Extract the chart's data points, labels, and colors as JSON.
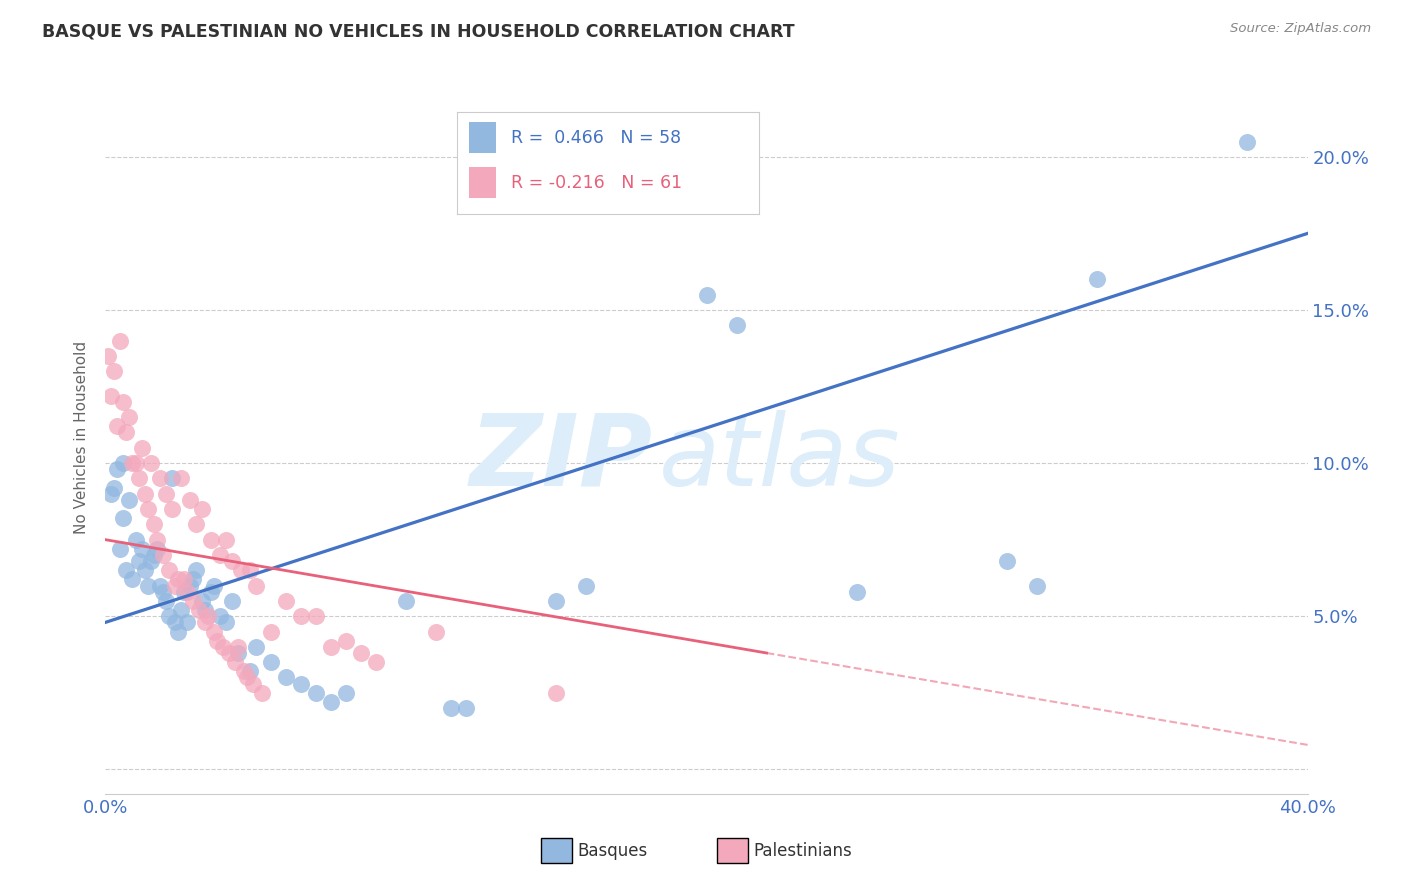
{
  "title": "BASQUE VS PALESTINIAN NO VEHICLES IN HOUSEHOLD CORRELATION CHART",
  "source": "Source: ZipAtlas.com",
  "ylabel": "No Vehicles in Household",
  "xlim": [
    0.0,
    0.4
  ],
  "ylim": [
    -0.008,
    0.225
  ],
  "basque_R": 0.466,
  "basque_N": 58,
  "palestinian_R": -0.216,
  "palestinian_N": 61,
  "basque_color": "#92b8e0",
  "palestinian_color": "#f4a8bc",
  "basque_line_color": "#4472c4",
  "palestinian_line_color": "#e8607a",
  "watermark_zip": "ZIP",
  "watermark_atlas": "atlas",
  "watermark_color": "#ddeefa",
  "legend_label_basque": "Basques",
  "legend_label_palestinian": "Palestinians",
  "grid_color": "#cccccc",
  "title_color": "#333333",
  "source_color": "#888888",
  "axis_tick_color": "#4472c4",
  "ytick_vals": [
    0.0,
    0.05,
    0.1,
    0.15,
    0.2
  ],
  "xtick_vals": [
    0.0,
    0.1,
    0.2,
    0.3,
    0.4
  ],
  "basque_scatter": [
    [
      0.002,
      0.09
    ],
    [
      0.003,
      0.092
    ],
    [
      0.004,
      0.098
    ],
    [
      0.005,
      0.072
    ],
    [
      0.006,
      0.082
    ],
    [
      0.006,
      0.1
    ],
    [
      0.007,
      0.065
    ],
    [
      0.008,
      0.088
    ],
    [
      0.009,
      0.062
    ],
    [
      0.01,
      0.075
    ],
    [
      0.011,
      0.068
    ],
    [
      0.012,
      0.072
    ],
    [
      0.013,
      0.065
    ],
    [
      0.014,
      0.06
    ],
    [
      0.015,
      0.068
    ],
    [
      0.016,
      0.07
    ],
    [
      0.017,
      0.072
    ],
    [
      0.018,
      0.06
    ],
    [
      0.019,
      0.058
    ],
    [
      0.02,
      0.055
    ],
    [
      0.021,
      0.05
    ],
    [
      0.022,
      0.095
    ],
    [
      0.023,
      0.048
    ],
    [
      0.024,
      0.045
    ],
    [
      0.025,
      0.052
    ],
    [
      0.026,
      0.058
    ],
    [
      0.027,
      0.048
    ],
    [
      0.028,
      0.06
    ],
    [
      0.029,
      0.062
    ],
    [
      0.03,
      0.065
    ],
    [
      0.032,
      0.055
    ],
    [
      0.033,
      0.052
    ],
    [
      0.035,
      0.058
    ],
    [
      0.036,
      0.06
    ],
    [
      0.038,
      0.05
    ],
    [
      0.04,
      0.048
    ],
    [
      0.042,
      0.055
    ],
    [
      0.044,
      0.038
    ],
    [
      0.048,
      0.032
    ],
    [
      0.05,
      0.04
    ],
    [
      0.055,
      0.035
    ],
    [
      0.06,
      0.03
    ],
    [
      0.065,
      0.028
    ],
    [
      0.07,
      0.025
    ],
    [
      0.075,
      0.022
    ],
    [
      0.08,
      0.025
    ],
    [
      0.1,
      0.055
    ],
    [
      0.115,
      0.02
    ],
    [
      0.12,
      0.02
    ],
    [
      0.15,
      0.055
    ],
    [
      0.16,
      0.06
    ],
    [
      0.2,
      0.155
    ],
    [
      0.21,
      0.145
    ],
    [
      0.25,
      0.058
    ],
    [
      0.3,
      0.068
    ],
    [
      0.31,
      0.06
    ],
    [
      0.33,
      0.16
    ],
    [
      0.38,
      0.205
    ]
  ],
  "palestinian_scatter": [
    [
      0.001,
      0.135
    ],
    [
      0.002,
      0.122
    ],
    [
      0.003,
      0.13
    ],
    [
      0.004,
      0.112
    ],
    [
      0.005,
      0.14
    ],
    [
      0.006,
      0.12
    ],
    [
      0.007,
      0.11
    ],
    [
      0.008,
      0.115
    ],
    [
      0.009,
      0.1
    ],
    [
      0.01,
      0.1
    ],
    [
      0.011,
      0.095
    ],
    [
      0.012,
      0.105
    ],
    [
      0.013,
      0.09
    ],
    [
      0.014,
      0.085
    ],
    [
      0.015,
      0.1
    ],
    [
      0.016,
      0.08
    ],
    [
      0.017,
      0.075
    ],
    [
      0.018,
      0.095
    ],
    [
      0.019,
      0.07
    ],
    [
      0.02,
      0.09
    ],
    [
      0.021,
      0.065
    ],
    [
      0.022,
      0.085
    ],
    [
      0.023,
      0.06
    ],
    [
      0.024,
      0.062
    ],
    [
      0.025,
      0.095
    ],
    [
      0.026,
      0.062
    ],
    [
      0.027,
      0.058
    ],
    [
      0.028,
      0.088
    ],
    [
      0.029,
      0.055
    ],
    [
      0.03,
      0.08
    ],
    [
      0.031,
      0.052
    ],
    [
      0.032,
      0.085
    ],
    [
      0.033,
      0.048
    ],
    [
      0.034,
      0.05
    ],
    [
      0.035,
      0.075
    ],
    [
      0.036,
      0.045
    ],
    [
      0.037,
      0.042
    ],
    [
      0.038,
      0.07
    ],
    [
      0.039,
      0.04
    ],
    [
      0.04,
      0.075
    ],
    [
      0.041,
      0.038
    ],
    [
      0.042,
      0.068
    ],
    [
      0.043,
      0.035
    ],
    [
      0.044,
      0.04
    ],
    [
      0.045,
      0.065
    ],
    [
      0.046,
      0.032
    ],
    [
      0.047,
      0.03
    ],
    [
      0.048,
      0.065
    ],
    [
      0.049,
      0.028
    ],
    [
      0.05,
      0.06
    ],
    [
      0.052,
      0.025
    ],
    [
      0.055,
      0.045
    ],
    [
      0.06,
      0.055
    ],
    [
      0.065,
      0.05
    ],
    [
      0.07,
      0.05
    ],
    [
      0.075,
      0.04
    ],
    [
      0.08,
      0.042
    ],
    [
      0.085,
      0.038
    ],
    [
      0.09,
      0.035
    ],
    [
      0.11,
      0.045
    ],
    [
      0.15,
      0.025
    ]
  ],
  "basque_trend": [
    0.0,
    0.048,
    0.4,
    0.175
  ],
  "palestinian_trend_solid_x0": 0.0,
  "palestinian_trend_solid_y0": 0.075,
  "palestinian_trend_solid_x1": 0.22,
  "palestinian_trend_solid_y1": 0.038,
  "palestinian_trend_dashed_x0": 0.22,
  "palestinian_trend_dashed_y0": 0.038,
  "palestinian_trend_dashed_x1": 0.4,
  "palestinian_trend_dashed_y1": 0.008
}
